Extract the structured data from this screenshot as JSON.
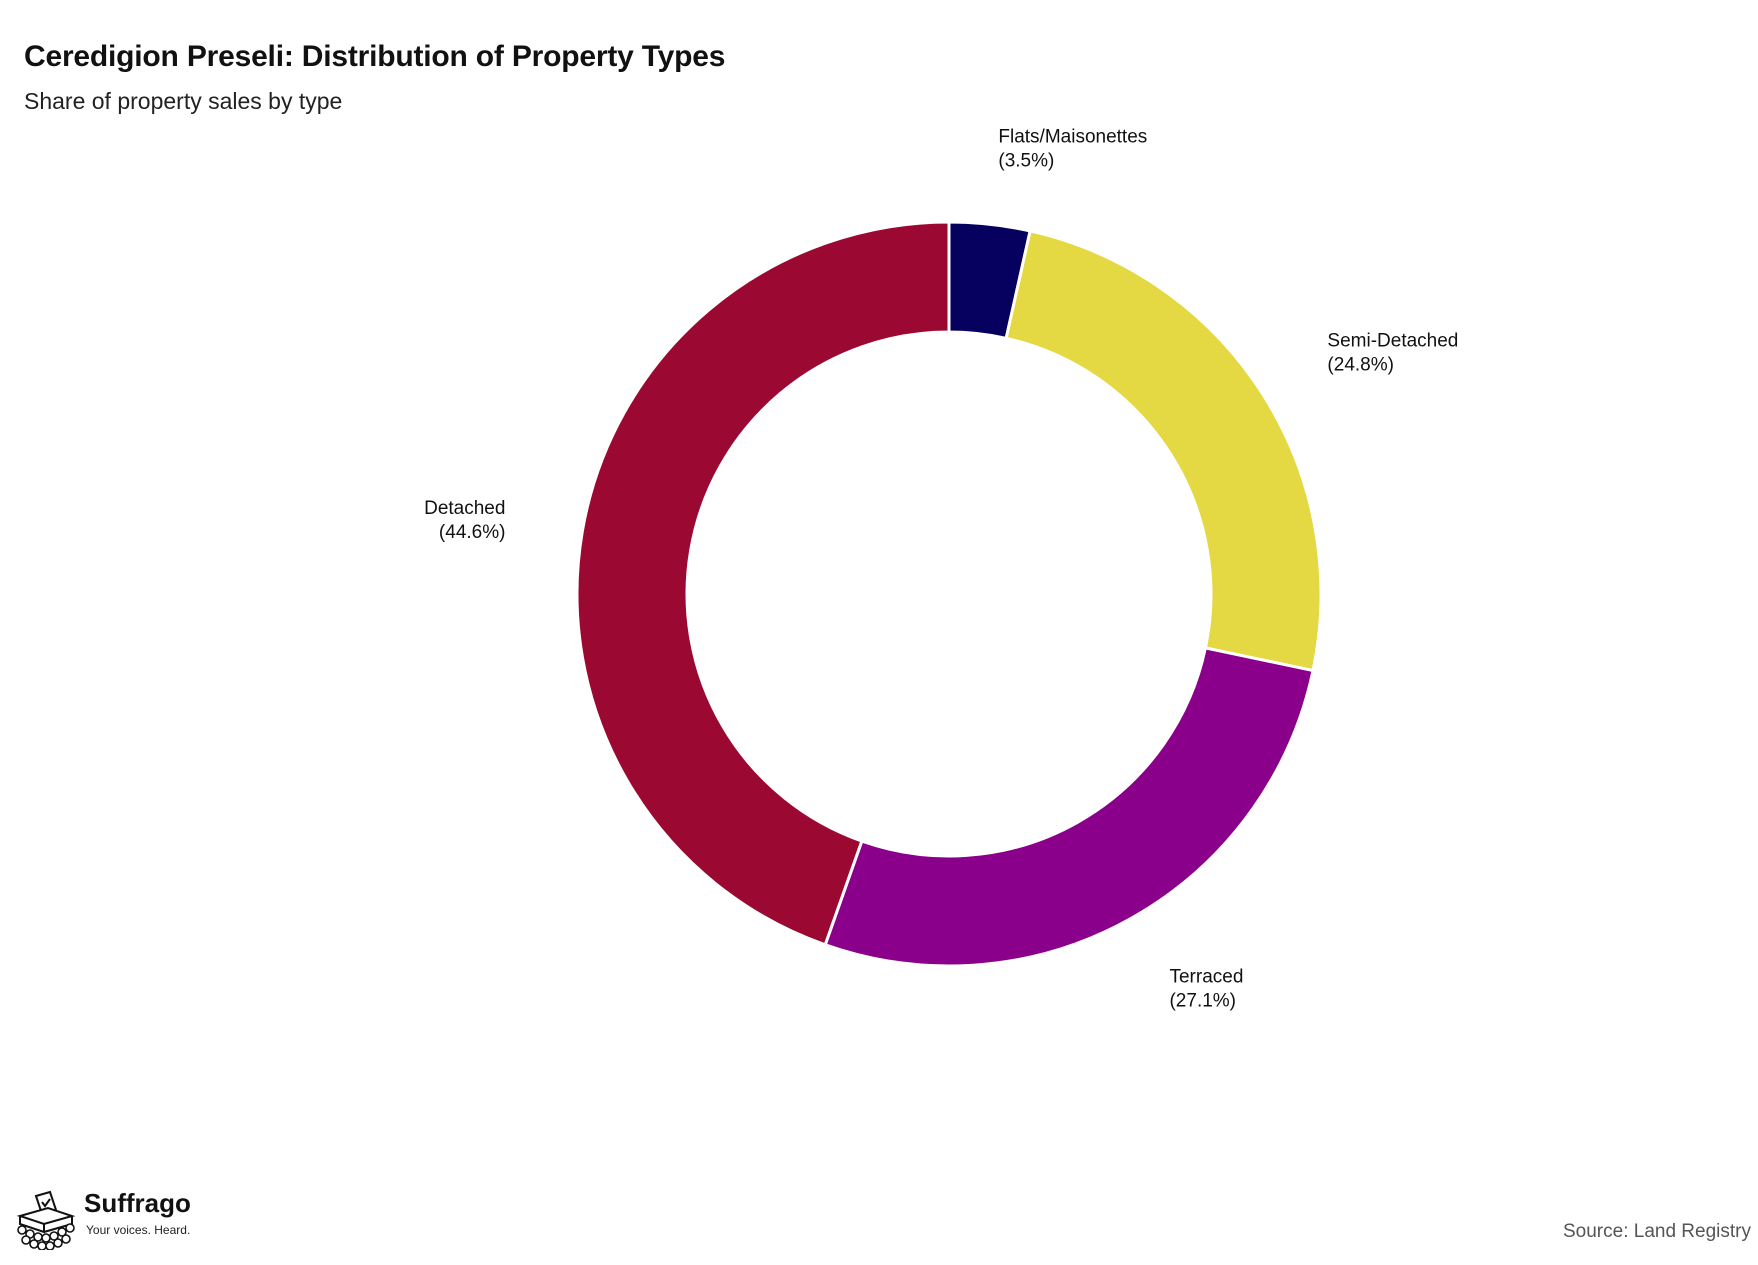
{
  "chart_data": {
    "type": "pie",
    "title": "Ceredigion Preseli: Distribution of Property Types",
    "subtitle": "Share of property sales by type",
    "slices": [
      {
        "name": "Flats/Maisonettes",
        "value": 3.5,
        "label": "(3.5%)",
        "color": "#06005F"
      },
      {
        "name": "Semi-Detached",
        "value": 24.8,
        "label": "(24.8%)",
        "color": "#E4D843"
      },
      {
        "name": "Terraced",
        "value": 27.1,
        "label": "(27.1%)",
        "color": "#8A008A"
      },
      {
        "name": "Detached",
        "value": 44.6,
        "label": "(44.6%)",
        "color": "#9B0832"
      }
    ]
  },
  "footer": {
    "brand": "Suffrago",
    "tagline": "Your voices. Heard.",
    "source": "Source: Land Registry"
  }
}
